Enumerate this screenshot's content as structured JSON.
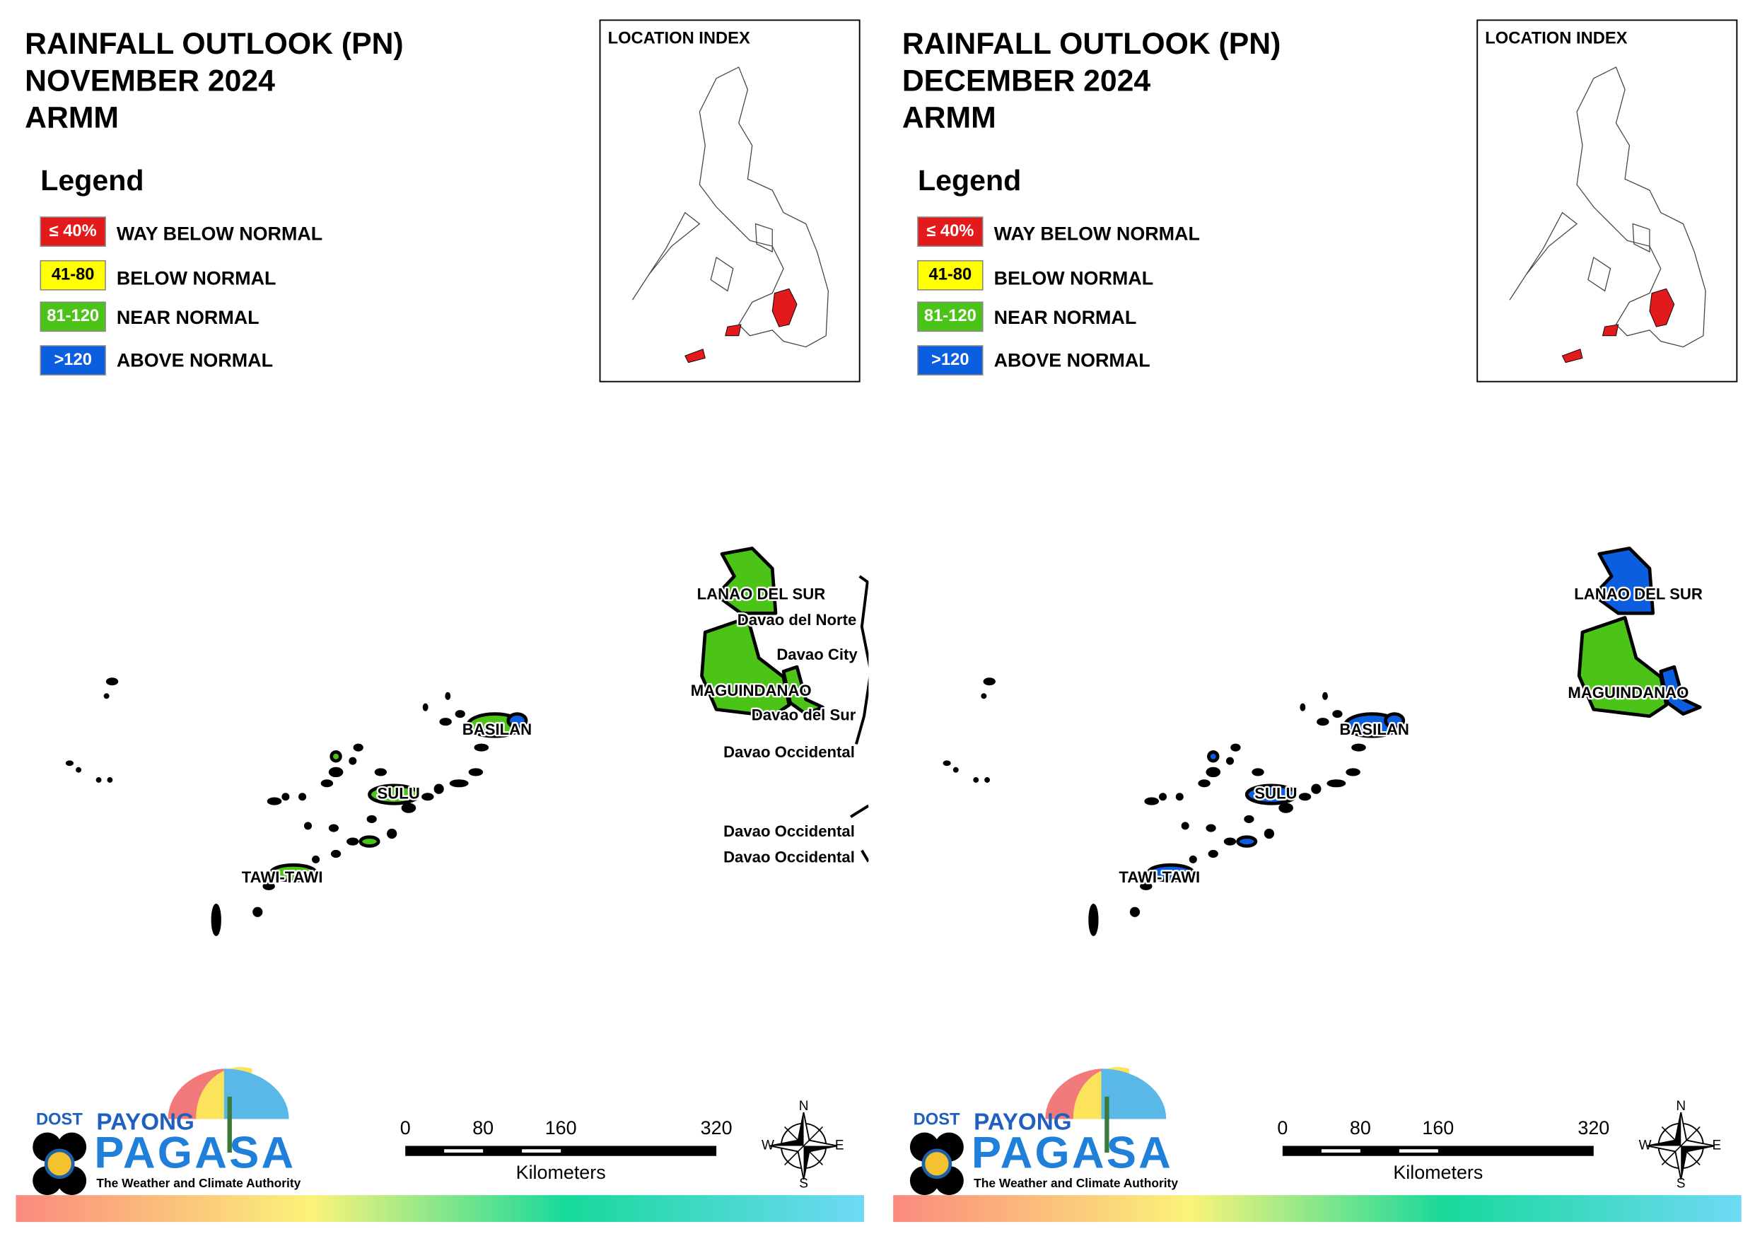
{
  "panels": [
    {
      "title": [
        "RAINFALL OUTLOOK (PN)",
        "NOVEMBER 2024",
        "ARMM"
      ],
      "location_index": "LOCATION INDEX",
      "legend": {
        "title": "Legend",
        "items": [
          {
            "swatch": "≤ 40%",
            "label": "WAY BELOW NORMAL",
            "color": "#e31a1c"
          },
          {
            "swatch": "41-80",
            "label": "BELOW NORMAL",
            "color": "#ffff00"
          },
          {
            "swatch": "81-120",
            "label": "NEAR NORMAL",
            "color": "#4cc417"
          },
          {
            "swatch": ">120",
            "label": "ABOVE NORMAL",
            "color": "#0b5ee0"
          }
        ]
      },
      "map_labels": [
        "LANAO DEL SUR",
        "Davao del Norte",
        "Davao City",
        "MAGUINDANAO",
        "Davao del Sur",
        "Davao Occidental",
        "Davao Occidental",
        "Davao Occidental",
        "BASILAN",
        "SULU",
        "TAWI-TAWI"
      ],
      "logo": {
        "agency": "DOST",
        "name_top": "PAYONG",
        "name_main": "PAGASA",
        "tagline": "The Weather and Climate Authority"
      },
      "scale_bar": {
        "ticks": [
          0,
          80,
          160,
          320
        ],
        "unit": "Kilometers"
      },
      "compass": {
        "n": "N",
        "e": "E",
        "s": "S",
        "w": "W"
      }
    },
    {
      "title": [
        "RAINFALL OUTLOOK (PN)",
        "DECEMBER 2024",
        "ARMM"
      ],
      "location_index": "LOCATION INDEX",
      "legend": {
        "title": "Legend",
        "items": [
          {
            "swatch": "≤ 40%",
            "label": "WAY BELOW NORMAL",
            "color": "#e31a1c"
          },
          {
            "swatch": "41-80",
            "label": "BELOW NORMAL",
            "color": "#ffff00"
          },
          {
            "swatch": "81-120",
            "label": "NEAR NORMAL",
            "color": "#4cc417"
          },
          {
            "swatch": ">120",
            "label": "ABOVE NORMAL",
            "color": "#0b5ee0"
          }
        ]
      },
      "map_labels": [
        "LANAO DEL SUR",
        "BASILAN",
        "SULU",
        "TAWI-TAWI",
        "MAGUINDANAO"
      ],
      "logo": {
        "agency": "DOST",
        "name_top": "PAYONG",
        "name_main": "PAGASA",
        "tagline": "The Weather and Climate Authority"
      },
      "scale_bar": {
        "ticks": [
          0,
          80,
          160,
          320
        ],
        "unit": "Kilometers"
      },
      "compass": {
        "n": "N",
        "e": "E",
        "s": "S",
        "w": "W"
      }
    }
  ]
}
